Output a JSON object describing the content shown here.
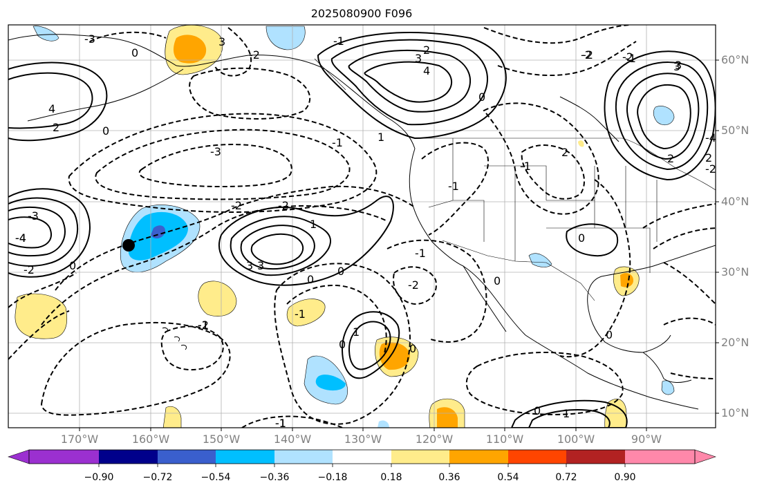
{
  "title": "2025080900 F096",
  "lat_labels": [
    "60°N",
    "50°N",
    "40°N",
    "30°N",
    "20°N",
    "10°N"
  ],
  "lon_labels": [
    "170°W",
    "160°W",
    "150°W",
    "140°W",
    "130°W",
    "120°W",
    "110°W",
    "100°W",
    "90°W"
  ],
  "colorbar": {
    "ticks": [
      "−0.90",
      "−0.72",
      "−0.54",
      "−0.36",
      "−0.18",
      "0.18",
      "0.36",
      "0.54",
      "0.72",
      "0.90"
    ],
    "colors": [
      "#9b30d0",
      "#00008b",
      "#3a5fcd",
      "#00bfff",
      "#b0e2ff",
      "#ffffff",
      "#ffec8b",
      "#ffa500",
      "#ff4500",
      "#b22222",
      "#ff88aa"
    ]
  },
  "contour_labels": [
    "-3",
    "0",
    "3",
    "-2",
    "-1",
    "3",
    "4",
    "-2",
    "2",
    "4",
    "2",
    "-4",
    "-2",
    "-1",
    "0",
    "1",
    "-3",
    "-2",
    "-2",
    "-1",
    "-1",
    "2",
    "1",
    "-3",
    "3",
    "-4",
    "3",
    "-2",
    "2",
    "-2",
    "0",
    "3",
    "-2",
    "0",
    "0",
    "-1",
    "-1",
    "-2",
    "-1",
    "-1",
    "0",
    "1",
    "0",
    "0",
    "0",
    "-1",
    "-1",
    "0",
    "0",
    "1",
    "-4",
    "2",
    "3",
    "-2",
    "-1",
    "0"
  ],
  "marker": "black-dot"
}
